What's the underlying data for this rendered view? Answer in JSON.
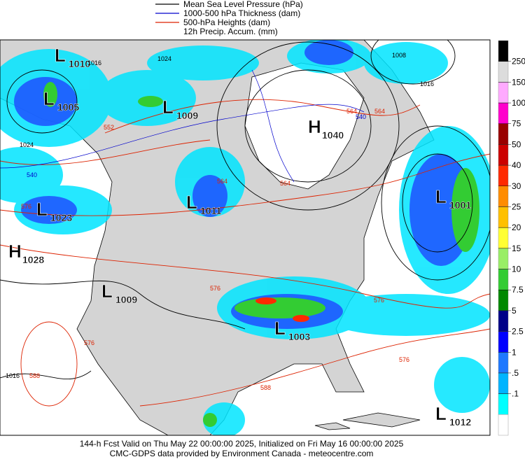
{
  "legend": [
    "Mean Sea Level Pressure (hPa)",
    "1000-500 hPa Thickness (dam)",
    "500-hPa Heights (dam)",
    "12h Precip. Accum. (mm)"
  ],
  "legend_colors": [
    "#000000",
    "#0000cc",
    "#dd2200",
    null
  ],
  "systems": [
    {
      "symbol": "L",
      "value": 1010
    },
    {
      "symbol": "L",
      "value": 1005
    },
    {
      "symbol": "L",
      "value": 1009
    },
    {
      "symbol": "H",
      "value": 1040
    },
    {
      "symbol": "L",
      "value": 1011
    },
    {
      "symbol": "L",
      "value": 1023
    },
    {
      "symbol": "H",
      "value": 1028
    },
    {
      "symbol": "L",
      "value": 1009
    },
    {
      "symbol": "L",
      "value": 1003
    },
    {
      "symbol": "L",
      "value": 1001
    },
    {
      "symbol": "L",
      "value": 1012
    }
  ],
  "contour_labels": [
    1024,
    1016,
    1024,
    552,
    540,
    564,
    576,
    564,
    564,
    540,
    1008,
    1016,
    576,
    564,
    588,
    576,
    588,
    576,
    1016,
    576
  ],
  "colorbar": {
    "ticks": [
      250,
      150,
      100,
      75,
      50,
      40,
      30,
      25,
      20,
      15,
      10,
      7.5,
      5,
      2.5,
      1,
      {
        "value": 0.5,
        "label": ".5"
      },
      {
        "value": 0.1,
        "label": ".1"
      }
    ],
    "colors": [
      "#000000",
      "#dcdcdc",
      "#ffaaff",
      "#ff00cc",
      "#990000",
      "#cc0000",
      "#ff2a00",
      "#ff8c00",
      "#ffc000",
      "#ffff33",
      "#99ee66",
      "#33cc33",
      "#008800",
      "#000088",
      "#0000ff",
      "#1e78ff",
      "#00b4ff",
      "#00ffff",
      "#ffffff"
    ]
  },
  "footer": [
    "144-h Fcst Valid on Thu May 22 00:00:00 2025, Initialized on Fri May 16 00:00:00 2025",
    "CMC-GDPS data provided by Environment Canada - meteocentre.com"
  ]
}
